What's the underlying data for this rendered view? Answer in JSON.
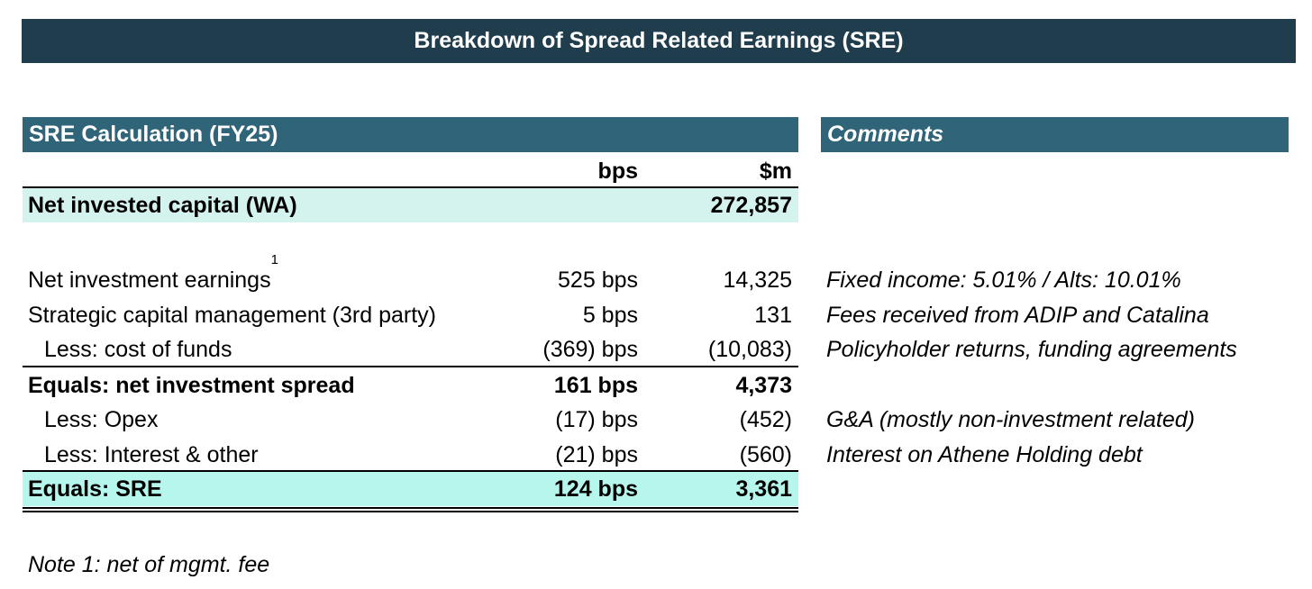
{
  "title": "Breakdown of Spread Related Earnings (SRE)",
  "table": {
    "header": "SRE Calculation (FY25)",
    "col_bps": "bps",
    "col_usd": "$m",
    "rows": {
      "nic": {
        "label": "Net invested capital (WA)",
        "bps": "",
        "usd": "272,857"
      },
      "nie": {
        "label": "Net investment earnings",
        "superscript": "1",
        "bps": "525 bps",
        "usd": "14,325"
      },
      "scm": {
        "label": "Strategic capital management (3rd party)",
        "bps": "5 bps",
        "usd": "131"
      },
      "cof": {
        "label": "Less: cost of funds",
        "bps": "(369) bps",
        "usd": "(10,083)"
      },
      "nis": {
        "label": "Equals: net investment spread",
        "bps": "161 bps",
        "usd": "4,373"
      },
      "opex": {
        "label": "Less: Opex",
        "bps": "(17) bps",
        "usd": "(452)"
      },
      "interest": {
        "label": "Less: Interest & other",
        "bps": "(21) bps",
        "usd": "(560)"
      },
      "sre": {
        "label": "Equals: SRE",
        "bps": "124 bps",
        "usd": "3,361"
      }
    }
  },
  "comments": {
    "header": "Comments",
    "nie": "Fixed income: 5.01%  / Alts: 10.01%",
    "scm": "Fees received from ADIP and Catalina",
    "cof": "Policyholder returns, funding agreements",
    "opex": "G&A (mostly non-investment related)",
    "interest": "Interest on Athene Holding debt"
  },
  "note": "Note 1: net of mgmt. fee",
  "colors": {
    "title_bg": "#1f3d4c",
    "section_header_bg": "#2f6479",
    "highlight_light": "#d4f3ee",
    "highlight_strong": "#b7f6ec"
  }
}
